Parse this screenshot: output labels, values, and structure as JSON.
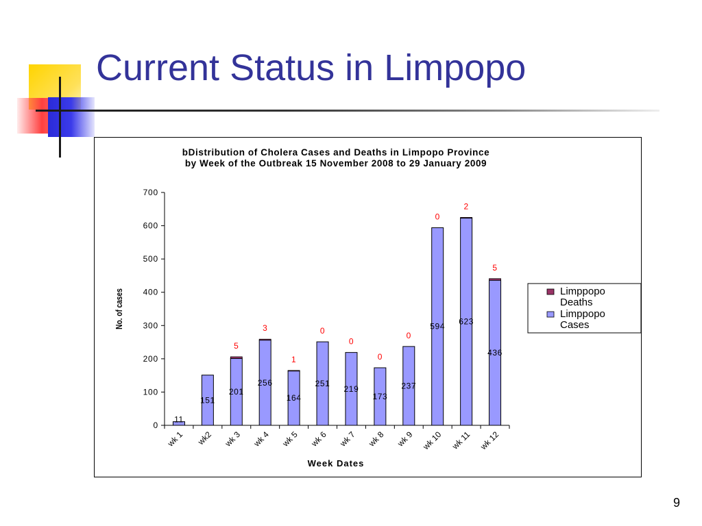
{
  "slide": {
    "title": "Current Status in Limpopo",
    "page_number": "9"
  },
  "colors": {
    "title": "#333399",
    "cases_fill": "#9999ff",
    "deaths_fill": "#993366",
    "death_label": "#ff0000"
  },
  "chart_data": {
    "type": "bar",
    "stacked": true,
    "title_line1": "bDistribution of Cholera Cases and Deaths in Limpopo Province",
    "title_line2": "by Week of the Outbreak 15 November 2008 to 29 January 2009",
    "xlabel": "Week Dates",
    "ylabel": "No. of cases",
    "ylim": [
      0,
      700
    ],
    "yticks": [
      0,
      100,
      200,
      300,
      400,
      500,
      600,
      700
    ],
    "categories": [
      "wk 1",
      "wk2",
      "wk 3",
      "wk 4",
      "wk 5",
      "wk 6",
      "wk 7",
      "wk 8",
      "wk 9",
      "wk 10",
      "wk 11",
      "wk 12"
    ],
    "series": [
      {
        "name": "Limppopo Cases",
        "values": [
          11,
          151,
          201,
          256,
          164,
          251,
          219,
          173,
          237,
          594,
          623,
          436
        ]
      },
      {
        "name": "Limppopo Deaths",
        "values": [
          null,
          null,
          5,
          3,
          1,
          0,
          0,
          0,
          0,
          0,
          2,
          5
        ]
      }
    ],
    "legend": [
      "Limppopo Deaths",
      "Limppopo Cases"
    ],
    "legend_position": "right",
    "grid": false
  }
}
